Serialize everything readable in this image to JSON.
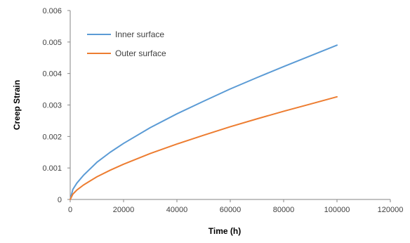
{
  "chart_data": {
    "type": "line",
    "title": "",
    "xlabel": "Time (h)",
    "ylabel": "Creep Strain",
    "xlim": [
      0,
      120000
    ],
    "ylim": [
      0,
      0.006
    ],
    "x_ticks": [
      0,
      20000,
      40000,
      60000,
      80000,
      100000,
      120000
    ],
    "x_tick_labels": [
      "0",
      "20000",
      "40000",
      "60000",
      "80000",
      "100000",
      "120000"
    ],
    "y_ticks": [
      0,
      0.001,
      0.002,
      0.003,
      0.004,
      0.005,
      0.006
    ],
    "y_tick_labels": [
      "0",
      "0.001",
      "0.002",
      "0.003",
      "0.004",
      "0.005",
      "0.006"
    ],
    "grid": false,
    "legend_position": "top-left",
    "x": [
      0,
      1000,
      2500,
      5000,
      10000,
      15000,
      20000,
      30000,
      40000,
      50000,
      60000,
      70000,
      80000,
      90000,
      100000
    ],
    "series": [
      {
        "name": "Inner surface",
        "color": "#5B9BD5",
        "values": [
          0,
          0.00032,
          0.00052,
          0.00077,
          0.00118,
          0.0015,
          0.00178,
          0.00228,
          0.00272,
          0.00312,
          0.00351,
          0.00387,
          0.00422,
          0.00456,
          0.0049
        ]
      },
      {
        "name": "Outer surface",
        "color": "#ED7D31",
        "values": [
          0,
          0.00017,
          0.0003,
          0.00046,
          0.00072,
          0.00093,
          0.00112,
          0.00146,
          0.00176,
          0.00204,
          0.00231,
          0.00256,
          0.0028,
          0.00303,
          0.00326
        ]
      }
    ]
  }
}
